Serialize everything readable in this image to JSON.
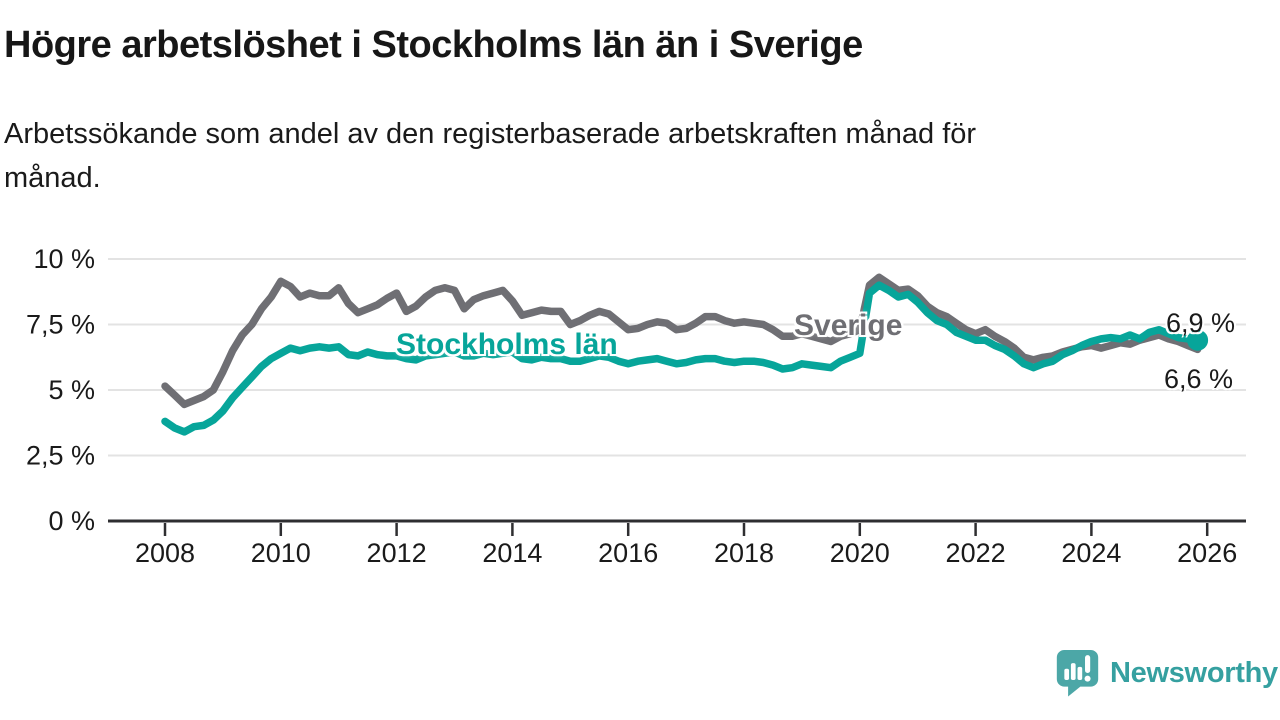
{
  "header": {
    "title": "Högre arbetslöshet i Stockholms län än i Sverige",
    "subtitle_line1": "Arbetssökande som andel av den registerbaserade arbetskraften månad för",
    "subtitle_line2": "månad."
  },
  "colors": {
    "accent_teal": "#07a59a",
    "line_gray": "#6f6f74",
    "grid": "#e3e3e3",
    "axis": "#2e2e31",
    "text": "#1a1a1a",
    "logo_teal": "#4ca7a7",
    "logo_text_teal": "#35a0a0"
  },
  "chart_data": {
    "type": "line",
    "title": "Högre arbetslöshet i Stockholms län än i Sverige",
    "subtitle": "Arbetssökande som andel av den registerbaserade arbetskraften månad för månad.",
    "xlabel": "",
    "ylabel": "",
    "grid": true,
    "legend_position": "inline-labels",
    "xlim": [
      2007.9,
      2026.65
    ],
    "ylim": [
      0,
      10.5
    ],
    "x_start": 2008.0,
    "x_step_years": 0.166667,
    "x_unit": "year (monthly series)",
    "y_unit": "percent of registered labour force",
    "y_ticks": [
      {
        "value": 0,
        "label": "0 %"
      },
      {
        "value": 2.5,
        "label": "2,5 %"
      },
      {
        "value": 5,
        "label": "5 %"
      },
      {
        "value": 7.5,
        "label": "7,5 %"
      },
      {
        "value": 10,
        "label": "10 %"
      }
    ],
    "x_ticks": [
      {
        "value": 2008,
        "label": "2008"
      },
      {
        "value": 2010,
        "label": "2010"
      },
      {
        "value": 2012,
        "label": "2012"
      },
      {
        "value": 2014,
        "label": "2014"
      },
      {
        "value": 2016,
        "label": "2016"
      },
      {
        "value": 2018,
        "label": "2018"
      },
      {
        "value": 2020,
        "label": "2020"
      },
      {
        "value": 2022,
        "label": "2022"
      },
      {
        "value": 2024,
        "label": "2024"
      },
      {
        "value": 2026,
        "label": "2026"
      }
    ],
    "series": [
      {
        "name": "Sverige",
        "color": "#6f6f74",
        "end_label": "6,6 %",
        "end_value": 6.6,
        "end_dot": false,
        "values": [
          5.15,
          4.8,
          4.45,
          4.6,
          4.75,
          5.0,
          5.7,
          6.5,
          7.1,
          7.5,
          8.1,
          8.55,
          9.15,
          8.95,
          8.55,
          8.7,
          8.6,
          8.6,
          8.9,
          8.3,
          7.95,
          8.1,
          8.25,
          8.5,
          8.7,
          8.0,
          8.2,
          8.55,
          8.8,
          8.9,
          8.8,
          8.1,
          8.45,
          8.6,
          8.7,
          8.8,
          8.4,
          7.85,
          7.95,
          8.05,
          8.0,
          8.0,
          7.5,
          7.65,
          7.85,
          8.0,
          7.9,
          7.6,
          7.3,
          7.35,
          7.5,
          7.6,
          7.55,
          7.3,
          7.35,
          7.55,
          7.8,
          7.8,
          7.65,
          7.55,
          7.6,
          7.55,
          7.5,
          7.3,
          7.05,
          7.05,
          7.15,
          7.05,
          6.95,
          6.85,
          7.05,
          7.15,
          7.3,
          9.0,
          9.3,
          9.05,
          8.8,
          8.85,
          8.6,
          8.2,
          7.95,
          7.8,
          7.55,
          7.3,
          7.15,
          7.3,
          7.05,
          6.85,
          6.6,
          6.25,
          6.15,
          6.25,
          6.3,
          6.45,
          6.55,
          6.65,
          6.7,
          6.6,
          6.7,
          6.8,
          6.75,
          6.9,
          7.0,
          7.1,
          6.95,
          6.85,
          6.7,
          6.55
        ]
      },
      {
        "name": "Stockholms län",
        "color": "#07a59a",
        "end_label": "6,9 %",
        "end_value": 6.9,
        "end_dot": true,
        "values": [
          3.8,
          3.55,
          3.4,
          3.6,
          3.65,
          3.85,
          4.2,
          4.7,
          5.1,
          5.5,
          5.9,
          6.2,
          6.4,
          6.6,
          6.5,
          6.6,
          6.65,
          6.6,
          6.65,
          6.35,
          6.3,
          6.45,
          6.35,
          6.3,
          6.3,
          6.2,
          6.15,
          6.3,
          6.35,
          6.4,
          6.45,
          6.3,
          6.3,
          6.4,
          6.35,
          6.4,
          6.45,
          6.2,
          6.15,
          6.25,
          6.2,
          6.2,
          6.1,
          6.1,
          6.2,
          6.3,
          6.25,
          6.1,
          6.0,
          6.1,
          6.15,
          6.2,
          6.1,
          6.0,
          6.05,
          6.15,
          6.2,
          6.2,
          6.1,
          6.05,
          6.1,
          6.1,
          6.05,
          5.95,
          5.8,
          5.85,
          6.0,
          5.95,
          5.9,
          5.85,
          6.1,
          6.25,
          6.4,
          8.7,
          9.0,
          8.8,
          8.55,
          8.65,
          8.35,
          7.95,
          7.65,
          7.5,
          7.2,
          7.05,
          6.9,
          6.9,
          6.7,
          6.55,
          6.3,
          6.0,
          5.85,
          6.0,
          6.1,
          6.35,
          6.5,
          6.7,
          6.85,
          6.95,
          7.0,
          6.95,
          7.1,
          6.95,
          7.2,
          7.3,
          7.15,
          7.0,
          6.95,
          6.9
        ]
      }
    ]
  },
  "branding": {
    "name": "Newsworthy",
    "logo_icon": "speech-bubble-bar-chart-icon"
  }
}
